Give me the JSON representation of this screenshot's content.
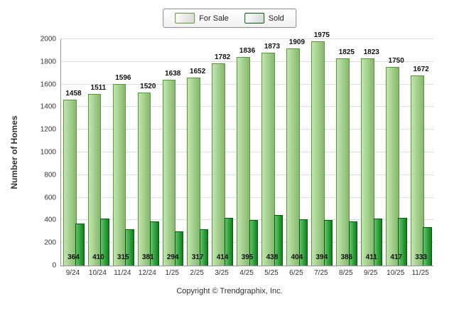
{
  "legend": {
    "for_sale_label": "For Sale",
    "sold_label": "Sold"
  },
  "ylabel": "Number of Homes",
  "footer": "Copyright © Trendgraphix, Inc.",
  "colors": {
    "for_sale": "#9CD67E",
    "sold": "#0A9B18",
    "gridline": "#dddddd",
    "axis": "#999999"
  },
  "chart_data": {
    "type": "bar",
    "title": "",
    "categories": [
      "9/24",
      "10/24",
      "11/24",
      "12/24",
      "1/25",
      "2/25",
      "3/25",
      "4/25",
      "5/25",
      "6/25",
      "7/25",
      "8/25",
      "9/25",
      "10/25",
      "11/25"
    ],
    "series": [
      {
        "name": "For Sale",
        "color": "#9CD67E",
        "values": [
          1458,
          1511,
          1596,
          1520,
          1638,
          1652,
          1782,
          1836,
          1873,
          1909,
          1975,
          1825,
          1823,
          1750,
          1672
        ]
      },
      {
        "name": "Sold",
        "color": "#0A9B18",
        "values": [
          364,
          410,
          315,
          381,
          294,
          317,
          414,
          395,
          438,
          404,
          394,
          386,
          411,
          417,
          333
        ]
      }
    ],
    "xlabel": "",
    "ylabel": "Number of Homes",
    "ylim": [
      0,
      2000
    ],
    "ytick_interval": 200,
    "grid": true,
    "legend_position": "top-center",
    "data_labels": true
  }
}
